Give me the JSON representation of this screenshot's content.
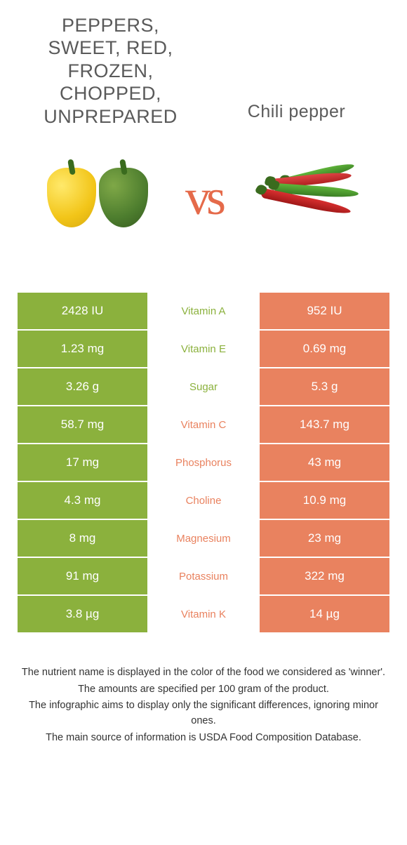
{
  "colors": {
    "green": "#8bb13d",
    "orange": "#e9825f"
  },
  "left": {
    "title": "Peppers, sweet, red, frozen, chopped, unprepared"
  },
  "right": {
    "title": "Chili pepper"
  },
  "vs": "vs",
  "rows": [
    {
      "nutrient": "Vitamin A",
      "left": "2428 IU",
      "right": "952 IU",
      "winner": "left"
    },
    {
      "nutrient": "Vitamin E",
      "left": "1.23 mg",
      "right": "0.69 mg",
      "winner": "left"
    },
    {
      "nutrient": "Sugar",
      "left": "3.26 g",
      "right": "5.3 g",
      "winner": "left"
    },
    {
      "nutrient": "Vitamin C",
      "left": "58.7 mg",
      "right": "143.7 mg",
      "winner": "right"
    },
    {
      "nutrient": "Phosphorus",
      "left": "17 mg",
      "right": "43 mg",
      "winner": "right"
    },
    {
      "nutrient": "Choline",
      "left": "4.3 mg",
      "right": "10.9 mg",
      "winner": "right"
    },
    {
      "nutrient": "Magnesium",
      "left": "8 mg",
      "right": "23 mg",
      "winner": "right"
    },
    {
      "nutrient": "Potassium",
      "left": "91 mg",
      "right": "322 mg",
      "winner": "right"
    },
    {
      "nutrient": "Vitamin K",
      "left": "3.8 µg",
      "right": "14 µg",
      "winner": "right"
    }
  ],
  "footnotes": [
    "The nutrient name is displayed in the color of the food we considered as 'winner'.",
    "The amounts are specified per 100 gram of the product.",
    "The infographic aims to display only the significant differences, ignoring minor ones.",
    "The main source of information is USDA Food Composition Database."
  ]
}
